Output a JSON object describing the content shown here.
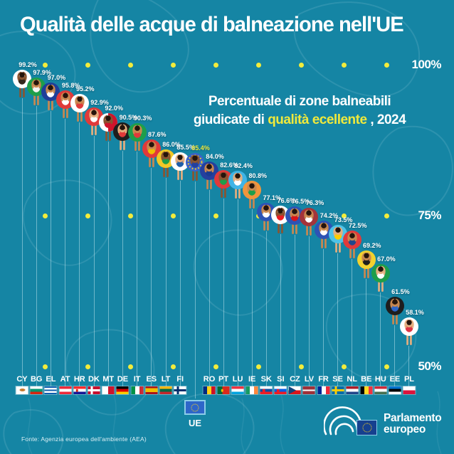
{
  "title": "Qualità delle acque di balneazione nell'UE",
  "subtitle": {
    "line1": "Percentuale di zone balneabili",
    "line2_prefix": "giudicate di ",
    "line2_highlight": "qualità ecellente",
    "line2_suffix": " , 2024"
  },
  "colors": {
    "background": "#1585A4",
    "accent_yellow": "#EFE93C",
    "grid_dot": "#F2EC3B",
    "text": "#FFFFFF"
  },
  "axis": {
    "gridlines": [
      {
        "label": "100%",
        "value": 100
      },
      {
        "label": "75%",
        "value": 75
      },
      {
        "label": "50%",
        "value": 50
      }
    ]
  },
  "eu_average": {
    "code": "UE",
    "label": "85.4%"
  },
  "source": "Fonte: Agenzia europea dell'ambiente (AEA)",
  "logo": {
    "line1": "Parlamento",
    "line2": "europeo"
  },
  "chart_data": {
    "type": "scatter",
    "title": "Qualità delle acque di balneazione nell'UE",
    "subtitle": "Percentuale di zone balneabili giudicate di qualità ecellente, 2024",
    "unit": "%",
    "ylim": [
      50,
      100
    ],
    "gridlines": [
      100,
      75,
      50
    ],
    "points": [
      {
        "code": "CY",
        "label": "99.2%",
        "value": 99.2,
        "ring": "#FFFFFF",
        "suit": "#33271C",
        "skin": "#8A5430",
        "flag": {
          "type": "cy",
          "bg": "#FFFFFF",
          "emblem": "#C77B30"
        }
      },
      {
        "code": "BG",
        "label": "97.9%",
        "value": 97.9,
        "ring": "#1E9E4A",
        "suit": "#F3F3F3",
        "skin": "#C98850",
        "flag": {
          "type": "h",
          "colors": [
            "#FFFFFF",
            "#00966E",
            "#D62612"
          ]
        }
      },
      {
        "code": "EL",
        "label": "97.0%",
        "value": 97.0,
        "ring": "#1F3F99",
        "suit": "#FFFFFF",
        "skin": "#C98850",
        "flag": {
          "type": "h",
          "colors": [
            "#0D5EAF",
            "#FFFFFF",
            "#0D5EAF",
            "#FFFFFF",
            "#0D5EAF"
          ]
        }
      },
      {
        "code": "AT",
        "label": "95.8%",
        "value": 95.8,
        "ring": "#E03A3A",
        "suit": "#FFFFFF",
        "skin": "#C98850",
        "flag": {
          "type": "h",
          "colors": [
            "#ED2939",
            "#FFFFFF",
            "#ED2939"
          ]
        }
      },
      {
        "code": "HR",
        "label": "95.2%",
        "value": 95.2,
        "ring": "#FFFFFF",
        "suit": "#E03A3A",
        "skin": "#C98850",
        "flag": {
          "type": "h",
          "colors": [
            "#FF2B2B",
            "#FFFFFF",
            "#171796"
          ],
          "emblem": "#D62612"
        }
      },
      {
        "code": "DK",
        "label": "92.9%",
        "value": 92.9,
        "ring": "#E03A3A",
        "suit": "#FFFFFF",
        "skin": "#E5AE7E",
        "flag": {
          "type": "nordic",
          "bg": "#C8102E",
          "cross": "#FFFFFF"
        }
      },
      {
        "code": "MT",
        "label": "92.0%",
        "value": 92.0,
        "ring": "#FFFFFF",
        "ring2": "#CF142B",
        "suit": "#CF142B",
        "skin": "#8A5430",
        "flag": {
          "type": "v",
          "colors": [
            "#FFFFFF",
            "#CF142B"
          ]
        }
      },
      {
        "code": "DE",
        "label": "90.5%",
        "value": 90.5,
        "ring": "#1E1E1E",
        "suit": "#E03A3A",
        "skin": "#E5AE7E",
        "flag": {
          "type": "h",
          "colors": [
            "#000000",
            "#DD0000",
            "#FFCE00"
          ]
        }
      },
      {
        "code": "IT",
        "label": "90.3%",
        "value": 90.3,
        "ring": "#1E9E4A",
        "suit": "#E03A3A",
        "skin": "#C98850",
        "flag": {
          "type": "v",
          "colors": [
            "#009246",
            "#FFFFFF",
            "#CE2B37"
          ]
        }
      },
      {
        "code": "ES",
        "label": "87.6%",
        "value": 87.6,
        "ring": "#E03A3A",
        "suit": "#F1BF00",
        "skin": "#C98850",
        "flag": {
          "type": "h",
          "colors": [
            "#AA151B",
            "#F1BF00",
            "#AA151B"
          ],
          "w": [
            1,
            2,
            1
          ]
        }
      },
      {
        "code": "LT",
        "label": "86.0%",
        "value": 86.0,
        "ring": "#F2C827",
        "suit": "#1E9E4A",
        "skin": "#8A5430",
        "flag": {
          "type": "h",
          "colors": [
            "#FDB913",
            "#006A44",
            "#C1272D"
          ]
        }
      },
      {
        "code": "FI",
        "label": "85.5%",
        "value": 85.5,
        "ring": "#FFFFFF",
        "suit": "#1F5FA8",
        "skin": "#E5AE7E",
        "flag": {
          "type": "nordic",
          "bg": "#FFFFFF",
          "cross": "#002F6C"
        }
      },
      {
        "code": "UE",
        "label": "85.4%",
        "value": 85.4,
        "highlight": true,
        "ring": "#3B62C8",
        "suit": "#24409E",
        "skin": "#8A5430",
        "flag": {
          "type": "eu",
          "bg": "#2E66C9",
          "stars": "#FFD617"
        }
      },
      {
        "code": "RO",
        "label": "84.0%",
        "value": 84.0,
        "ring": "#24409E",
        "suit": "#1B3B8F",
        "skin": "#C98850",
        "flag": {
          "type": "v",
          "colors": [
            "#002B7F",
            "#FCD116",
            "#CE1126"
          ]
        }
      },
      {
        "code": "PT",
        "label": "82.6%",
        "value": 82.6,
        "ring": "#E03A3A",
        "suit": "#1E9E4A",
        "skin": "#8A5430",
        "flag": {
          "type": "v",
          "colors": [
            "#046A38",
            "#DA291C"
          ],
          "w": [
            2,
            3
          ],
          "emblem": "#F1BF00"
        }
      },
      {
        "code": "LU",
        "label": "82.4%",
        "value": 82.4,
        "ring": "#3FB4E6",
        "suit": "#FFFFFF",
        "skin": "#E5AE7E",
        "flag": {
          "type": "h",
          "colors": [
            "#EF3340",
            "#FFFFFF",
            "#00A3E0"
          ]
        }
      },
      {
        "code": "IE",
        "label": "80.8%",
        "value": 80.8,
        "ring": "#F0953C",
        "suit": "#1E9E4A",
        "skin": "#C98850",
        "flag": {
          "type": "v",
          "colors": [
            "#169B62",
            "#FFFFFF",
            "#FF883E"
          ]
        }
      },
      {
        "code": "SK",
        "label": "77.1%",
        "value": 77.1,
        "ring": "#2D53B5",
        "suit": "#FFFFFF",
        "skin": "#C98850",
        "flag": {
          "type": "h",
          "colors": [
            "#FFFFFF",
            "#0B4EA2",
            "#EE1C25"
          ],
          "emblem": "#EE1C25"
        }
      },
      {
        "code": "SI",
        "label": "76.6%",
        "value": 76.6,
        "ring": "#FFFFFF",
        "suit": "#ED1C24",
        "skin": "#8A5430",
        "flag": {
          "type": "h",
          "colors": [
            "#FFFFFF",
            "#005CE6",
            "#ED1C24"
          ],
          "emblem": "#ED1C24"
        }
      },
      {
        "code": "CZ",
        "label": "76.5%",
        "value": 76.5,
        "ring": "#2D53B5",
        "suit": "#D7141A",
        "skin": "#C98850",
        "flag": {
          "type": "cz",
          "top": "#FFFFFF",
          "bottom": "#D7141A",
          "triangle": "#11457E"
        }
      },
      {
        "code": "LV",
        "label": "76.3%",
        "value": 76.3,
        "ring": "#A4343A",
        "suit": "#FFFFFF",
        "skin": "#C98850",
        "flag": {
          "type": "h",
          "colors": [
            "#9E3039",
            "#FFFFFF",
            "#9E3039"
          ],
          "w": [
            2,
            1,
            2
          ]
        }
      },
      {
        "code": "FR",
        "label": "74.2%",
        "value": 74.2,
        "ring": "#2D53B5",
        "suit": "#FFFFFF",
        "skin": "#C98850",
        "flag": {
          "type": "v",
          "colors": [
            "#002395",
            "#FFFFFF",
            "#ED2939"
          ]
        }
      },
      {
        "code": "SE",
        "label": "73.5%",
        "value": 73.5,
        "ring": "#4FC3E8",
        "suit": "#FECC02",
        "skin": "#E5AE7E",
        "flag": {
          "type": "nordic",
          "bg": "#006AA7",
          "cross": "#FECC02"
        }
      },
      {
        "code": "NL",
        "label": "72.5%",
        "value": 72.5,
        "ring": "#E03A3A",
        "suit": "#21468B",
        "skin": "#C98850",
        "flag": {
          "type": "h",
          "colors": [
            "#AE1C28",
            "#FFFFFF",
            "#21468B"
          ]
        }
      },
      {
        "code": "BE",
        "label": "69.2%",
        "value": 69.2,
        "ring": "#F2D12F",
        "suit": "#1E1E1E",
        "skin": "#C98850",
        "flag": {
          "type": "v",
          "colors": [
            "#000000",
            "#FDDA24",
            "#EF3340"
          ]
        }
      },
      {
        "code": "HU",
        "label": "67.0%",
        "value": 67.0,
        "ring": "#1E9E4A",
        "suit": "#FFFFFF",
        "skin": "#E5AE7E",
        "flag": {
          "type": "h",
          "colors": [
            "#CE2939",
            "#FFFFFF",
            "#477050"
          ]
        }
      },
      {
        "code": "EE",
        "label": "61.5%",
        "value": 61.5,
        "ring": "#1E1E1E",
        "suit": "#2E66C9",
        "skin": "#C98850",
        "flag": {
          "type": "h",
          "colors": [
            "#0072CE",
            "#000000",
            "#FFFFFF"
          ]
        }
      },
      {
        "code": "PL",
        "label": "58.1%",
        "value": 58.1,
        "ring": "#FFFFFF",
        "suit": "#DC3545",
        "skin": "#E5AE7E",
        "flag": {
          "type": "h",
          "colors": [
            "#FFFFFF",
            "#DC143C"
          ]
        }
      }
    ]
  }
}
